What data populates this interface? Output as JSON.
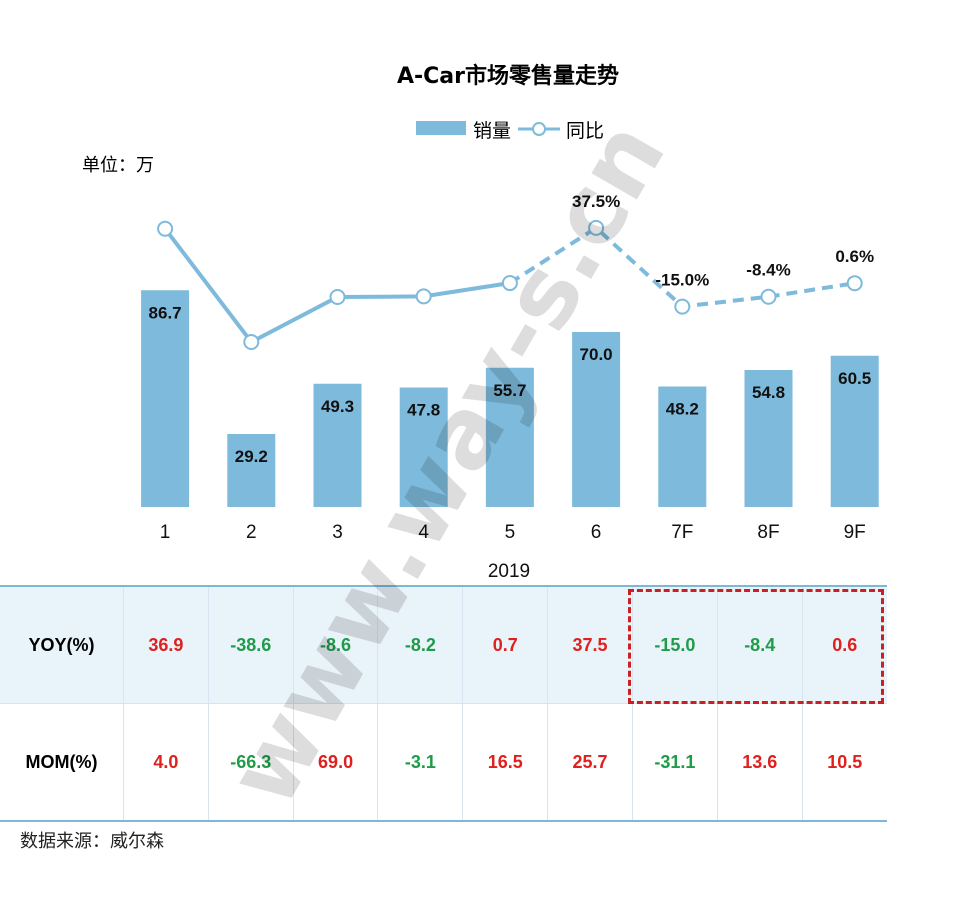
{
  "chart_data": {
    "type": "bar",
    "title": "A-Car市场零售量走势",
    "unit_label": "单位：万",
    "xlabel": "2019",
    "categories": [
      "1",
      "2",
      "3",
      "4",
      "5",
      "6",
      "7F",
      "8F",
      "9F"
    ],
    "series": [
      {
        "name": "销量",
        "type": "bar",
        "color": "#7dbadc",
        "values": [
          86.7,
          29.2,
          49.3,
          47.8,
          55.7,
          70.0,
          48.2,
          54.8,
          60.5
        ],
        "labels": [
          "86.7",
          "29.2",
          "49.3",
          "47.8",
          "55.7",
          "70.0",
          "48.2",
          "54.8",
          "60.5"
        ]
      },
      {
        "name": "同比",
        "type": "line",
        "color": "#7dbadc",
        "values": [
          36.9,
          -38.6,
          -8.6,
          -8.2,
          0.7,
          37.5,
          -15.0,
          -8.4,
          0.6
        ],
        "dashed_from_index": 4,
        "labels": [
          "",
          "",
          "",
          "",
          "",
          "37.5%",
          "-15.0%",
          "-8.4%",
          "0.6%"
        ]
      }
    ],
    "legend_position": "top-center",
    "grid": false
  },
  "table": {
    "rows": [
      {
        "header": "YOY(%)",
        "cells": [
          "36.9",
          "-38.6",
          "-8.6",
          "-8.2",
          "0.7",
          "37.5",
          "-15.0",
          "-8.4",
          "0.6"
        ]
      },
      {
        "header": "MOM(%)",
        "cells": [
          "4.0",
          "-66.3",
          "69.0",
          "-3.1",
          "16.5",
          "25.7",
          "-31.1",
          "13.6",
          "10.5"
        ]
      }
    ],
    "positive_color": "#e0201f",
    "negative_color": "#1f9c48",
    "highlight_color": "#cc1f1f"
  },
  "watermark": "www.way-s.cn",
  "source": "数据来源：威尔森"
}
